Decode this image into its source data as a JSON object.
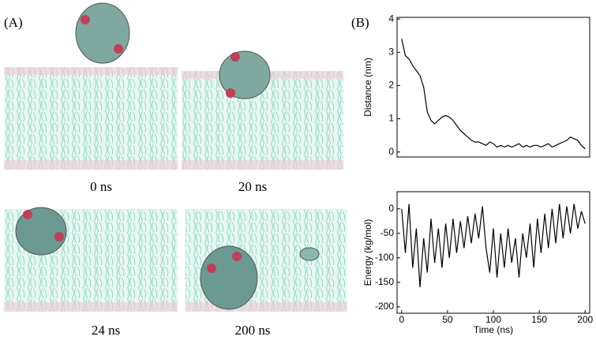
{
  "panel_a": {
    "label": "(A)",
    "snapshots": [
      {
        "caption": "0 ns"
      },
      {
        "caption": "20 ns"
      },
      {
        "caption": "24 ns"
      },
      {
        "caption": "200 ns"
      }
    ]
  },
  "panel_b_label": "(B)",
  "chart_data": [
    {
      "type": "line",
      "ylabel": "Distance (nm)",
      "color": "#000000",
      "xlim": [
        -5,
        205
      ],
      "ylim": [
        -0.15,
        4.05
      ],
      "yticks": [
        0,
        1,
        2,
        3,
        4
      ],
      "x": [
        0,
        4,
        8,
        12,
        16,
        20,
        24,
        28,
        32,
        36,
        40,
        44,
        48,
        52,
        56,
        60,
        64,
        68,
        72,
        76,
        80,
        84,
        88,
        92,
        96,
        100,
        104,
        108,
        112,
        116,
        120,
        124,
        128,
        132,
        136,
        140,
        144,
        148,
        152,
        156,
        160,
        164,
        168,
        172,
        176,
        180,
        184,
        188,
        192,
        196,
        200
      ],
      "values": [
        3.4,
        2.9,
        2.8,
        2.6,
        2.45,
        2.3,
        1.95,
        1.2,
        0.95,
        0.85,
        0.95,
        1.05,
        1.1,
        1.05,
        0.95,
        0.8,
        0.65,
        0.55,
        0.45,
        0.35,
        0.3,
        0.3,
        0.25,
        0.2,
        0.3,
        0.25,
        0.15,
        0.2,
        0.15,
        0.2,
        0.15,
        0.2,
        0.25,
        0.15,
        0.2,
        0.15,
        0.2,
        0.2,
        0.15,
        0.2,
        0.25,
        0.15,
        0.2,
        0.25,
        0.3,
        0.35,
        0.45,
        0.4,
        0.35,
        0.2,
        0.1
      ]
    },
    {
      "type": "line",
      "ylabel": "Energy (kg/mol)",
      "xlabel": "Time (ns)",
      "color": "#000000",
      "xlim": [
        -5,
        205
      ],
      "ylim": [
        -213,
        35
      ],
      "yticks": [
        -200,
        -150,
        -100,
        -50,
        0
      ],
      "xticks": [
        0,
        50,
        100,
        150,
        200
      ],
      "x": [
        0,
        4,
        8,
        12,
        16,
        20,
        24,
        28,
        32,
        36,
        40,
        44,
        48,
        52,
        56,
        60,
        64,
        68,
        72,
        76,
        80,
        84,
        88,
        92,
        96,
        100,
        104,
        108,
        112,
        116,
        120,
        124,
        128,
        132,
        136,
        140,
        144,
        148,
        152,
        156,
        160,
        164,
        168,
        172,
        176,
        180,
        184,
        188,
        192,
        196,
        200
      ],
      "values": [
        0,
        -90,
        10,
        -120,
        -40,
        -160,
        -60,
        -130,
        -20,
        -110,
        -40,
        -120,
        -30,
        -100,
        -20,
        -90,
        -25,
        -80,
        -15,
        -70,
        -10,
        -60,
        5,
        -80,
        -130,
        -40,
        -140,
        -50,
        -120,
        -40,
        -110,
        -60,
        -140,
        -50,
        -100,
        -30,
        -120,
        -20,
        -90,
        -10,
        -80,
        0,
        -70,
        10,
        -60,
        5,
        -50,
        10,
        -40,
        -5,
        -30
      ]
    }
  ]
}
